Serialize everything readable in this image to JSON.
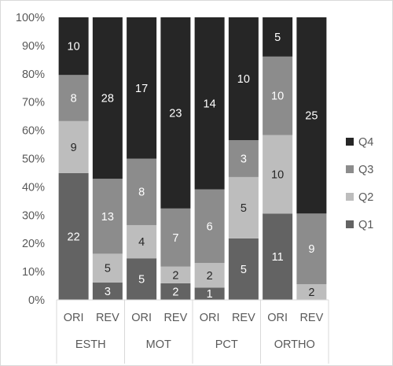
{
  "chart_data": {
    "type": "bar",
    "stacked": true,
    "normalized_percent": true,
    "groups": [
      "ESTH",
      "MOT",
      "PCT",
      "ORTHO"
    ],
    "categories": [
      "ORI",
      "REV",
      "ORI",
      "REV",
      "ORI",
      "REV",
      "ORI",
      "REV"
    ],
    "category_groups": [
      "ESTH",
      "ESTH",
      "MOT",
      "MOT",
      "PCT",
      "PCT",
      "ORTHO",
      "ORTHO"
    ],
    "series": [
      {
        "name": "Q1",
        "values": [
          22,
          3,
          5,
          2,
          1,
          5,
          11,
          0
        ]
      },
      {
        "name": "Q2",
        "values": [
          9,
          5,
          4,
          2,
          2,
          5,
          10,
          2
        ]
      },
      {
        "name": "Q3",
        "values": [
          8,
          13,
          8,
          7,
          6,
          3,
          10,
          9
        ]
      },
      {
        "name": "Q4",
        "values": [
          10,
          28,
          17,
          23,
          14,
          10,
          5,
          25
        ]
      }
    ],
    "yticks": [
      "0%",
      "10%",
      "20%",
      "30%",
      "40%",
      "50%",
      "60%",
      "70%",
      "80%",
      "90%",
      "100%"
    ],
    "ylim": [
      0,
      100
    ],
    "legend_position": "right",
    "grid": false,
    "colors": {
      "Q1": "#636363",
      "Q2": "#bdbdbd",
      "Q3": "#8c8c8c",
      "Q4": "#262626"
    },
    "label_colors": {
      "Q1": "#ffffff",
      "Q2": "#262626",
      "Q3": "#ffffff",
      "Q4": "#ffffff"
    }
  }
}
